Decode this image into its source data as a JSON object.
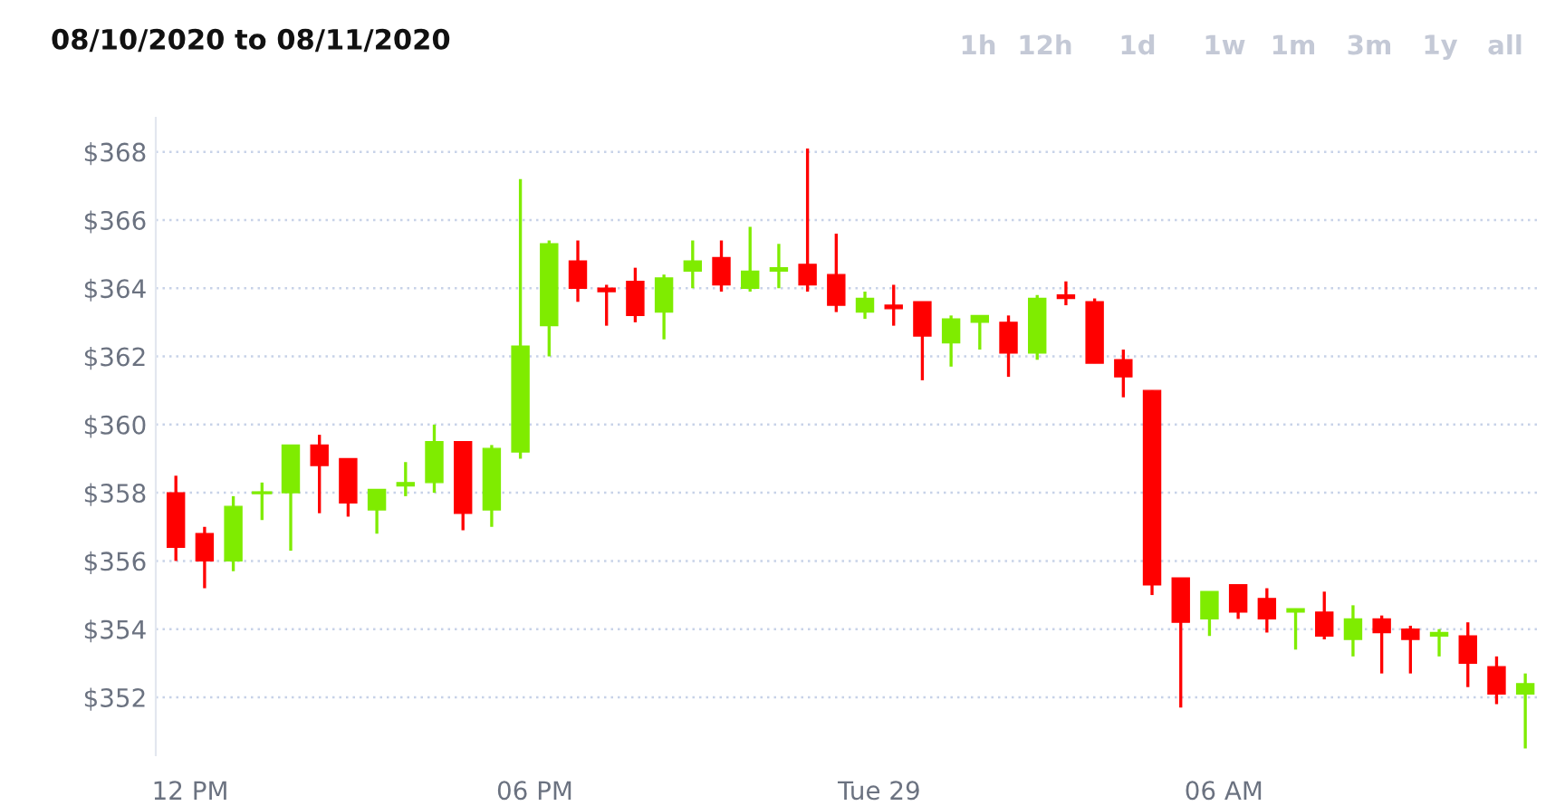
{
  "chart_data": {
    "type": "candlestick",
    "title": "08/10/2020 to 08/11/2020",
    "annotations": [
      "1h",
      "12h",
      "1d",
      "1w",
      "1m",
      "3m",
      "1y",
      "all"
    ],
    "x": [
      "2020-09-28T11:45",
      "2020-09-28T12:15",
      "2020-09-28T12:45",
      "2020-09-28T13:15",
      "2020-09-28T13:45",
      "2020-09-28T14:15",
      "2020-09-28T14:45",
      "2020-09-28T15:15",
      "2020-09-28T15:45",
      "2020-09-28T16:15",
      "2020-09-28T16:45",
      "2020-09-28T17:15",
      "2020-09-28T17:45",
      "2020-09-28T18:15",
      "2020-09-28T18:45",
      "2020-09-28T19:15",
      "2020-09-28T19:45",
      "2020-09-28T20:15",
      "2020-09-28T20:45",
      "2020-09-28T21:15",
      "2020-09-28T21:45",
      "2020-09-28T22:15",
      "2020-09-28T22:45",
      "2020-09-28T23:15",
      "2020-09-28T23:45",
      "2020-09-29T00:15",
      "2020-09-29T00:45",
      "2020-09-29T01:15",
      "2020-09-29T01:45",
      "2020-09-29T02:15",
      "2020-09-29T02:45",
      "2020-09-29T03:15",
      "2020-09-29T03:45",
      "2020-09-29T04:15",
      "2020-09-29T04:45",
      "2020-09-29T05:15",
      "2020-09-29T05:45",
      "2020-09-29T06:15",
      "2020-09-29T06:45",
      "2020-09-29T07:15",
      "2020-09-29T07:45",
      "2020-09-29T08:15",
      "2020-09-29T08:45",
      "2020-09-29T09:15",
      "2020-09-29T09:45",
      "2020-09-29T10:15",
      "2020-09-29T10:45",
      "2020-09-29T11:15"
    ],
    "ohlc": [
      [
        358.0,
        358.5,
        356.0,
        356.4
      ],
      [
        356.8,
        357.0,
        355.2,
        356.0
      ],
      [
        356.0,
        357.9,
        355.7,
        357.6
      ],
      [
        358.0,
        358.3,
        357.2,
        358.0
      ],
      [
        358.0,
        359.4,
        356.3,
        359.4
      ],
      [
        359.4,
        359.7,
        357.4,
        358.8
      ],
      [
        359.0,
        359.0,
        357.3,
        357.7
      ],
      [
        357.5,
        358.1,
        356.8,
        358.1
      ],
      [
        358.2,
        358.9,
        357.9,
        358.3
      ],
      [
        358.3,
        360.0,
        358.0,
        359.5
      ],
      [
        359.5,
        359.5,
        356.9,
        357.4
      ],
      [
        357.5,
        359.4,
        357.0,
        359.3
      ],
      [
        359.2,
        367.2,
        359.0,
        362.3
      ],
      [
        362.9,
        365.4,
        362.0,
        365.3
      ],
      [
        364.8,
        365.4,
        363.6,
        364.0
      ],
      [
        364.0,
        364.1,
        362.9,
        363.9
      ],
      [
        364.2,
        364.6,
        363.0,
        363.2
      ],
      [
        363.3,
        364.4,
        362.5,
        364.3
      ],
      [
        364.5,
        365.4,
        364.0,
        364.8
      ],
      [
        364.9,
        365.4,
        363.9,
        364.1
      ],
      [
        364.0,
        365.8,
        363.9,
        364.5
      ],
      [
        364.5,
        365.3,
        364.0,
        364.6
      ],
      [
        364.7,
        368.1,
        363.9,
        364.1
      ],
      [
        364.4,
        365.6,
        363.3,
        363.5
      ],
      [
        363.3,
        363.9,
        363.1,
        363.7
      ],
      [
        363.5,
        364.1,
        362.9,
        363.4
      ],
      [
        363.6,
        363.6,
        361.3,
        362.6
      ],
      [
        362.4,
        363.2,
        361.7,
        363.1
      ],
      [
        363.0,
        363.2,
        362.2,
        363.2
      ],
      [
        363.0,
        363.2,
        361.4,
        362.1
      ],
      [
        362.1,
        363.8,
        361.9,
        363.7
      ],
      [
        363.8,
        364.2,
        363.5,
        363.7
      ],
      [
        363.6,
        363.7,
        361.8,
        361.8
      ],
      [
        361.9,
        362.2,
        360.8,
        361.4
      ],
      [
        361.0,
        361.0,
        355.0,
        355.3
      ],
      [
        355.5,
        355.5,
        351.7,
        354.2
      ],
      [
        354.3,
        355.1,
        353.8,
        355.1
      ],
      [
        355.3,
        355.3,
        354.3,
        354.5
      ],
      [
        354.9,
        355.2,
        353.9,
        354.3
      ],
      [
        354.5,
        354.6,
        353.4,
        354.6
      ],
      [
        354.5,
        355.1,
        353.7,
        353.8
      ],
      [
        353.7,
        354.7,
        353.2,
        354.3
      ],
      [
        354.3,
        354.4,
        352.7,
        353.9
      ],
      [
        354.0,
        354.1,
        352.7,
        353.7
      ],
      [
        353.8,
        354.0,
        353.2,
        353.9
      ],
      [
        353.8,
        354.2,
        352.3,
        353.0
      ],
      [
        352.9,
        353.2,
        351.8,
        352.1
      ],
      [
        352.1,
        352.7,
        350.5,
        352.4
      ]
    ],
    "colors": [
      "#ff0000",
      "#ff0000",
      "#7fec00",
      "#7fec00",
      "#7fec00",
      "#ff0000",
      "#ff0000",
      "#7fec00",
      "#7fec00",
      "#7fec00",
      "#ff0000",
      "#7fec00",
      "#7fec00",
      "#7fec00",
      "#ff0000",
      "#ff0000",
      "#ff0000",
      "#7fec00",
      "#7fec00",
      "#ff0000",
      "#7fec00",
      "#7fec00",
      "#ff0000",
      "#ff0000",
      "#7fec00",
      "#ff0000",
      "#ff0000",
      "#7fec00",
      "#7fec00",
      "#ff0000",
      "#7fec00",
      "#ff0000",
      "#ff0000",
      "#ff0000",
      "#ff0000",
      "#ff0000",
      "#7fec00",
      "#ff0000",
      "#ff0000",
      "#7fec00",
      "#ff0000",
      "#7fec00",
      "#ff0000",
      "#ff0000",
      "#7fec00",
      "#ff0000",
      "#ff0000",
      "#7fec00"
    ],
    "xlim": [
      "2020-09-28T11:24",
      "2020-09-29T11:30"
    ],
    "xticks": [
      {
        "value": "2020-09-28T12:00",
        "label": "12 PM"
      },
      {
        "value": "2020-09-28T18:00",
        "label": "06 PM"
      },
      {
        "value": "2020-09-29T00:00",
        "label": "Tue 29"
      },
      {
        "value": "2020-09-29T06:00",
        "label": "06 AM"
      }
    ],
    "ylim": [
      350.3,
      369
    ],
    "yticks": [
      {
        "value": 352,
        "label": "$352"
      },
      {
        "value": 354,
        "label": "$354"
      },
      {
        "value": 356,
        "label": "$356"
      },
      {
        "value": 358,
        "label": "$358"
      },
      {
        "value": 360,
        "label": "$360"
      },
      {
        "value": 362,
        "label": "$362"
      },
      {
        "value": 364,
        "label": "$364"
      },
      {
        "value": 366,
        "label": "$366"
      },
      {
        "value": 368,
        "label": "$368"
      }
    ],
    "grid": "y"
  }
}
